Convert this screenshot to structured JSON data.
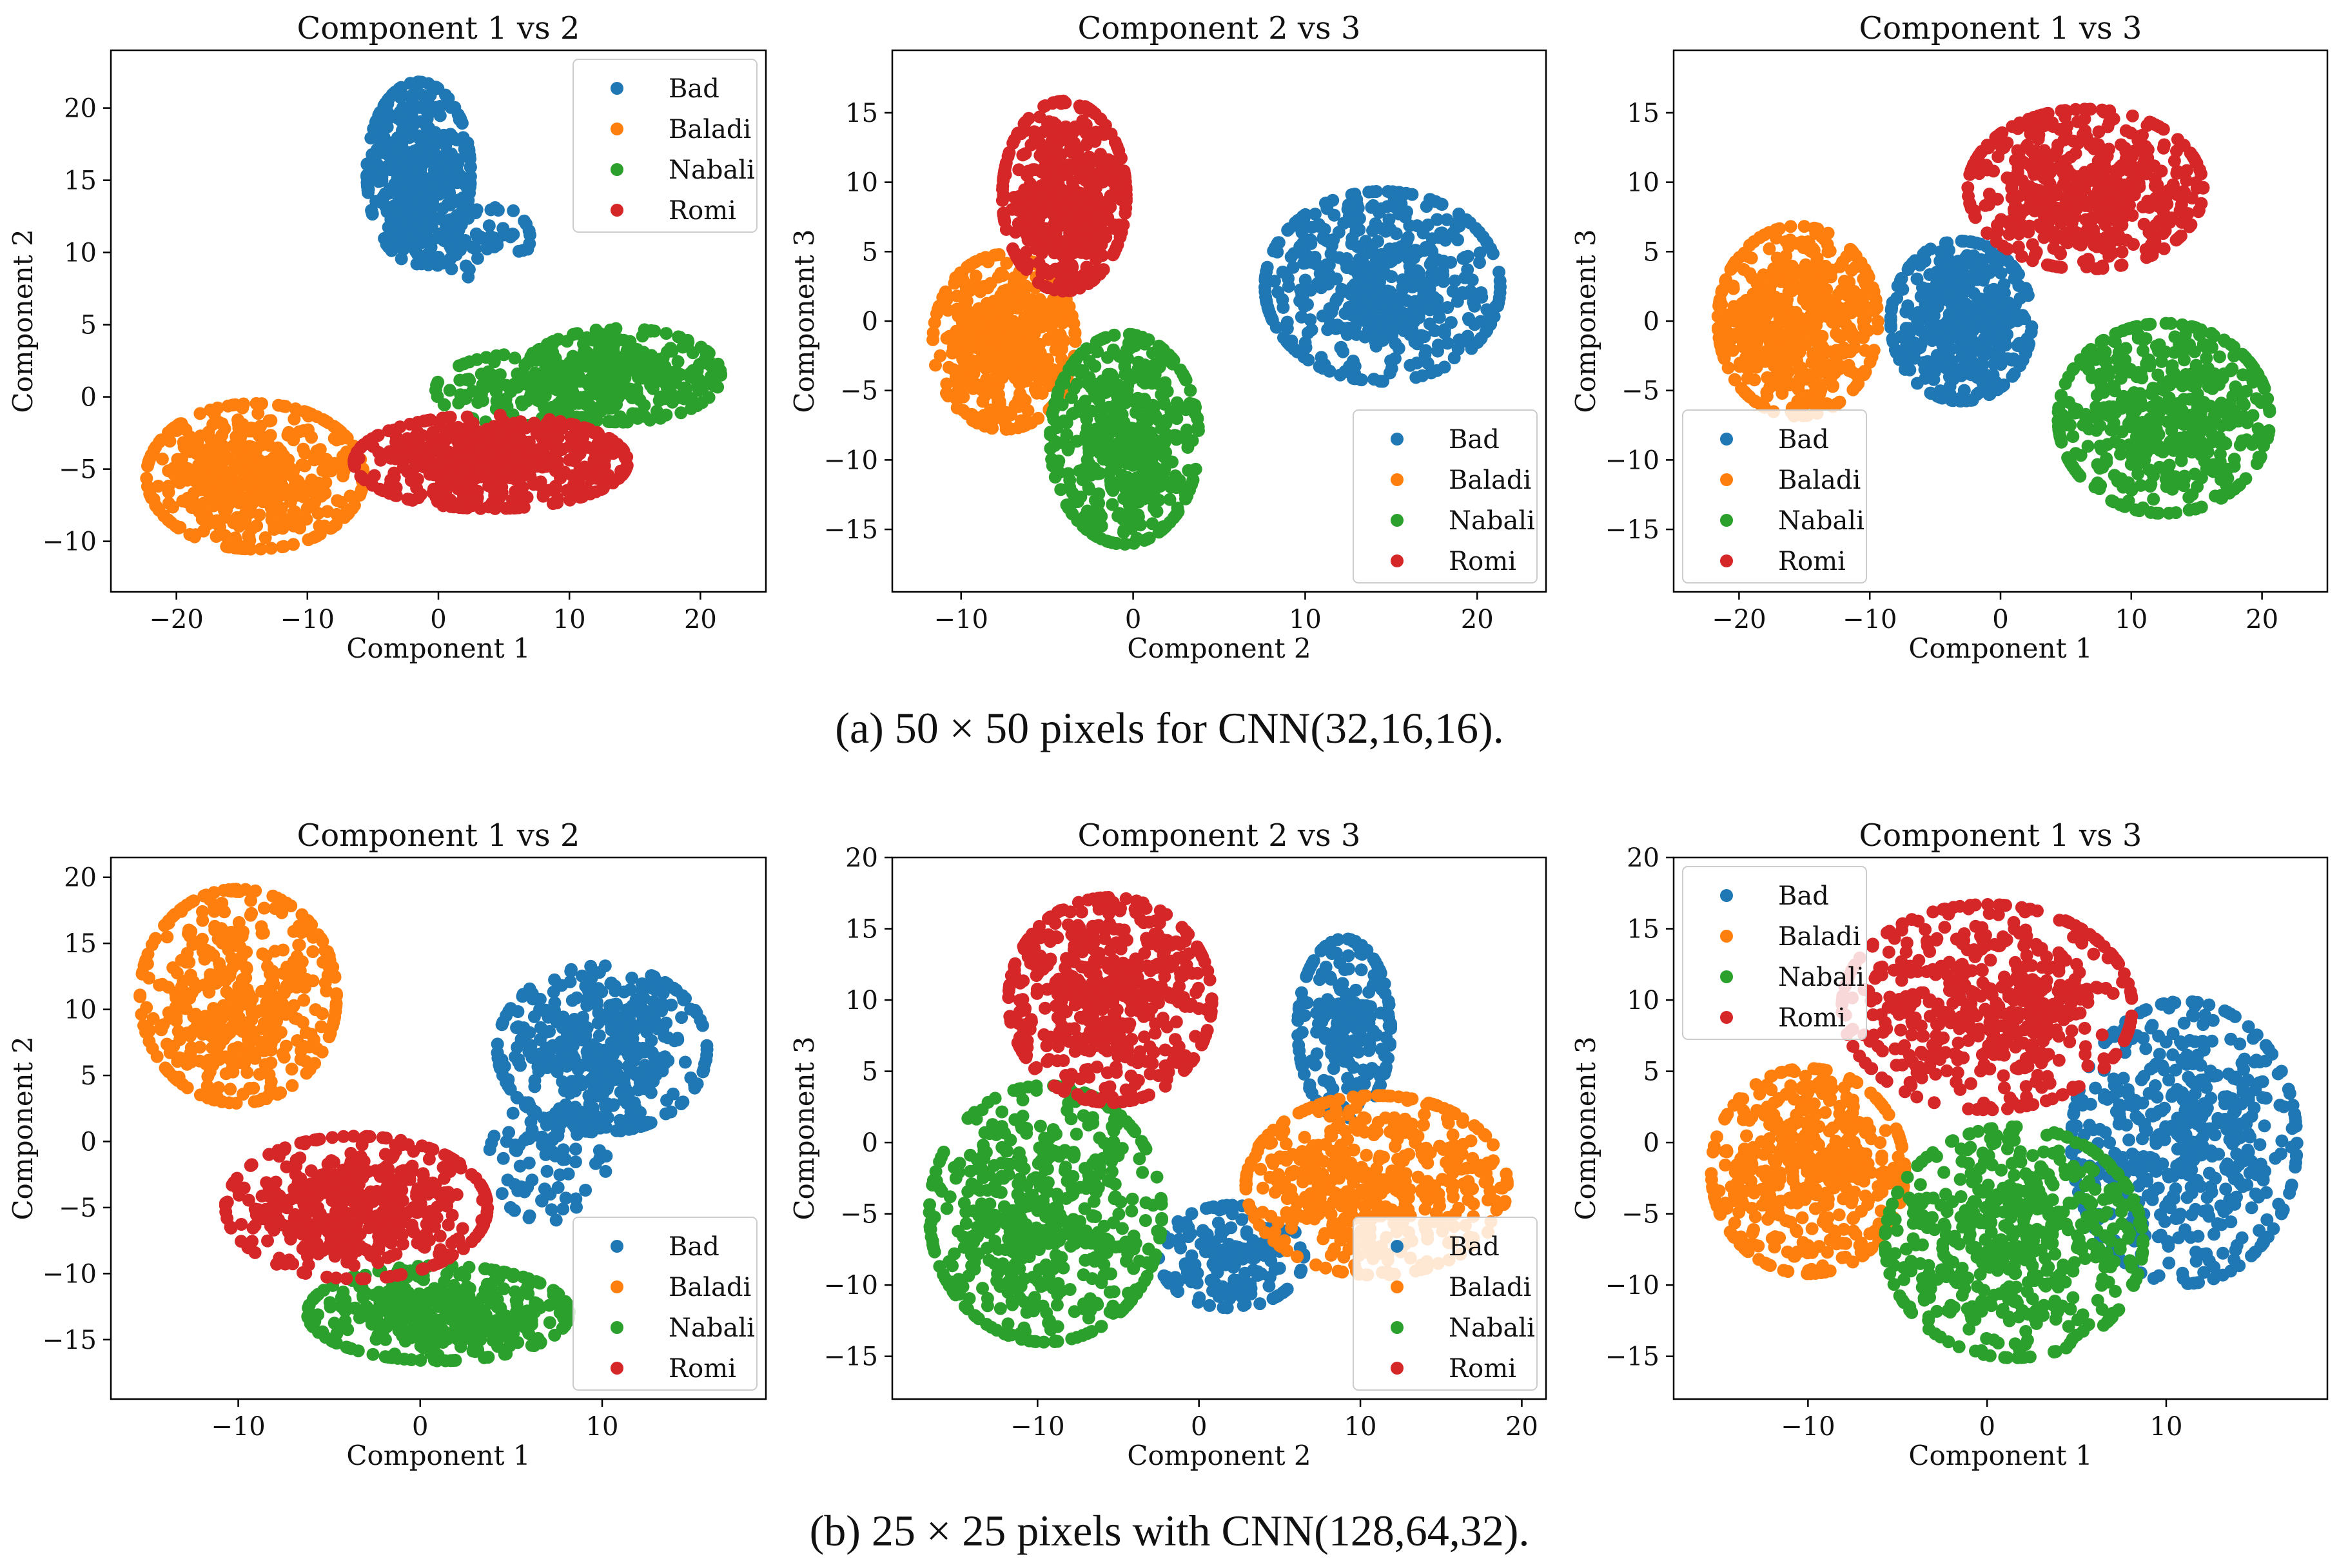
{
  "chart_data": [
    {
      "type": "scatter",
      "title": "Component 1 vs 2",
      "xlabel": "Component 1",
      "ylabel": "Component 2",
      "xlim": [
        -25,
        25
      ],
      "ylim": [
        -13.5,
        24
      ],
      "xticks": [
        -20,
        -10,
        0,
        10,
        20
      ],
      "yticks": [
        -10,
        -5,
        0,
        5,
        10,
        15,
        20
      ],
      "legend": "top-right",
      "clusters": {
        "Bad": [
          {
            "cx": -1.5,
            "cy": 15.5,
            "sx": 2.2,
            "sy": 3.5,
            "n": 420
          },
          {
            "cx": 2.5,
            "cy": 11,
            "sx": 2.5,
            "sy": 1.5,
            "n": 80
          }
        ],
        "Baladi": [
          {
            "cx": -14,
            "cy": -5.5,
            "sx": 4.6,
            "sy": 2.8,
            "n": 520
          }
        ],
        "Nabali": [
          {
            "cx": 14,
            "cy": 1.5,
            "sx": 4.2,
            "sy": 1.8,
            "n": 330
          },
          {
            "cx": 7,
            "cy": 0.5,
            "sx": 4,
            "sy": 1.4,
            "n": 160
          }
        ],
        "Romi": [
          {
            "cx": 4,
            "cy": -4.5,
            "sx": 5.8,
            "sy": 1.8,
            "n": 520
          }
        ]
      }
    },
    {
      "type": "scatter",
      "title": "Component 2 vs 3",
      "xlabel": "Component 2",
      "ylabel": "Component 3",
      "xlim": [
        -14,
        24
      ],
      "ylim": [
        -19.5,
        19.5
      ],
      "xticks": [
        -10,
        0,
        10,
        20
      ],
      "yticks": [
        -15,
        -10,
        -5,
        0,
        5,
        10,
        15
      ],
      "legend": "bottom-right",
      "clusters": {
        "Bad": [
          {
            "cx": 14.5,
            "cy": 2.5,
            "sx": 3.8,
            "sy": 3.8,
            "n": 520
          }
        ],
        "Baladi": [
          {
            "cx": -7.5,
            "cy": -1.5,
            "sx": 2.3,
            "sy": 3.5,
            "n": 480
          }
        ],
        "Nabali": [
          {
            "cx": -0.5,
            "cy": -8.5,
            "sx": 2.4,
            "sy": 4.2,
            "n": 520
          }
        ],
        "Romi": [
          {
            "cx": -4,
            "cy": 9,
            "sx": 2,
            "sy": 3.8,
            "n": 480
          }
        ]
      }
    },
    {
      "type": "scatter",
      "title": "Component 1 vs 3",
      "xlabel": "Component 1",
      "ylabel": "Component 3",
      "xlim": [
        -25,
        25
      ],
      "ylim": [
        -19.5,
        19.5
      ],
      "xticks": [
        -20,
        -10,
        0,
        10,
        20
      ],
      "yticks": [
        -15,
        -10,
        -5,
        0,
        5,
        10,
        15
      ],
      "legend": "bottom-left",
      "clusters": {
        "Bad": [
          {
            "cx": -3,
            "cy": 0,
            "sx": 3,
            "sy": 3.2,
            "n": 420
          }
        ],
        "Baladi": [
          {
            "cx": -15.5,
            "cy": 0,
            "sx": 3.4,
            "sy": 3.8,
            "n": 520
          }
        ],
        "Nabali": [
          {
            "cx": 12.5,
            "cy": -7,
            "sx": 4.5,
            "sy": 3.8,
            "n": 520
          }
        ],
        "Romi": [
          {
            "cx": 6.5,
            "cy": 9.5,
            "sx": 5,
            "sy": 3.2,
            "n": 520
          }
        ]
      }
    },
    {
      "type": "scatter",
      "title": "Component 1 vs 2",
      "xlabel": "Component 1",
      "ylabel": "Component 2",
      "xlim": [
        -17,
        19
      ],
      "ylim": [
        -19.5,
        21.5
      ],
      "xticks": [
        -10,
        0,
        10
      ],
      "yticks": [
        -15,
        -10,
        -5,
        0,
        5,
        10,
        15,
        20
      ],
      "legend": "bottom-right",
      "clusters": {
        "Bad": [
          {
            "cx": 10,
            "cy": 7,
            "sx": 3.2,
            "sy": 3.5,
            "n": 450
          },
          {
            "cx": 7,
            "cy": -1.5,
            "sx": 1.8,
            "sy": 2.5,
            "n": 90
          }
        ],
        "Baladi": [
          {
            "cx": -10,
            "cy": 11,
            "sx": 3,
            "sy": 4.5,
            "n": 460
          }
        ],
        "Nabali": [
          {
            "cx": 1,
            "cy": -13,
            "sx": 4,
            "sy": 2,
            "n": 420
          }
        ],
        "Romi": [
          {
            "cx": -3.5,
            "cy": -5,
            "sx": 4,
            "sy": 3,
            "n": 480
          }
        ]
      }
    },
    {
      "type": "scatter",
      "title": "Component 2 vs 3",
      "xlabel": "Component 2",
      "ylabel": "Component 3",
      "xlim": [
        -19,
        21.5
      ],
      "ylim": [
        -18,
        20
      ],
      "xticks": [
        -10,
        0,
        10,
        20
      ],
      "yticks": [
        -15,
        -10,
        -5,
        0,
        5,
        10,
        15,
        20
      ],
      "legend": "bottom-right",
      "clusters": {
        "Bad": [
          {
            "cx": 9,
            "cy": 8,
            "sx": 1.6,
            "sy": 3.5,
            "n": 220
          },
          {
            "cx": 2,
            "cy": -8,
            "sx": 2.5,
            "sy": 2,
            "n": 160
          }
        ],
        "Baladi": [
          {
            "cx": 11,
            "cy": -3,
            "sx": 4.5,
            "sy": 3.5,
            "n": 520
          }
        ],
        "Nabali": [
          {
            "cx": -9.5,
            "cy": -5,
            "sx": 4,
            "sy": 5,
            "n": 560
          }
        ],
        "Romi": [
          {
            "cx": -5.5,
            "cy": 10,
            "sx": 3.5,
            "sy": 4,
            "n": 520
          }
        ]
      }
    },
    {
      "type": "scatter",
      "title": "Component 1 vs 3",
      "xlabel": "Component 1",
      "ylabel": "Component 3",
      "xlim": [
        -17.5,
        19
      ],
      "ylim": [
        -18,
        20
      ],
      "xticks": [
        -10,
        0,
        10
      ],
      "yticks": [
        -15,
        -10,
        -5,
        0,
        5,
        10,
        15,
        20
      ],
      "legend": "top-left",
      "clusters": {
        "Bad": [
          {
            "cx": 11,
            "cy": 0,
            "sx": 3.5,
            "sy": 5.5,
            "n": 520
          }
        ],
        "Baladi": [
          {
            "cx": -10,
            "cy": -2,
            "sx": 3,
            "sy": 4,
            "n": 480
          }
        ],
        "Nabali": [
          {
            "cx": 1.5,
            "cy": -7,
            "sx": 4,
            "sy": 4.5,
            "n": 560
          }
        ],
        "Romi": [
          {
            "cx": 0,
            "cy": 9.5,
            "sx": 4.5,
            "sy": 4,
            "n": 540
          }
        ]
      }
    }
  ],
  "legend_entries": [
    "Bad",
    "Baladi",
    "Nabali",
    "Romi"
  ],
  "colors": {
    "Bad": "#1f77b4",
    "Baladi": "#ff7f0e",
    "Nabali": "#2ca02c",
    "Romi": "#d62728"
  },
  "captions": {
    "a": "(a)  50 × 50 pixels for CNN(32,16,16).",
    "b": "(b)  25 × 25 pixels with CNN(128,64,32)."
  }
}
